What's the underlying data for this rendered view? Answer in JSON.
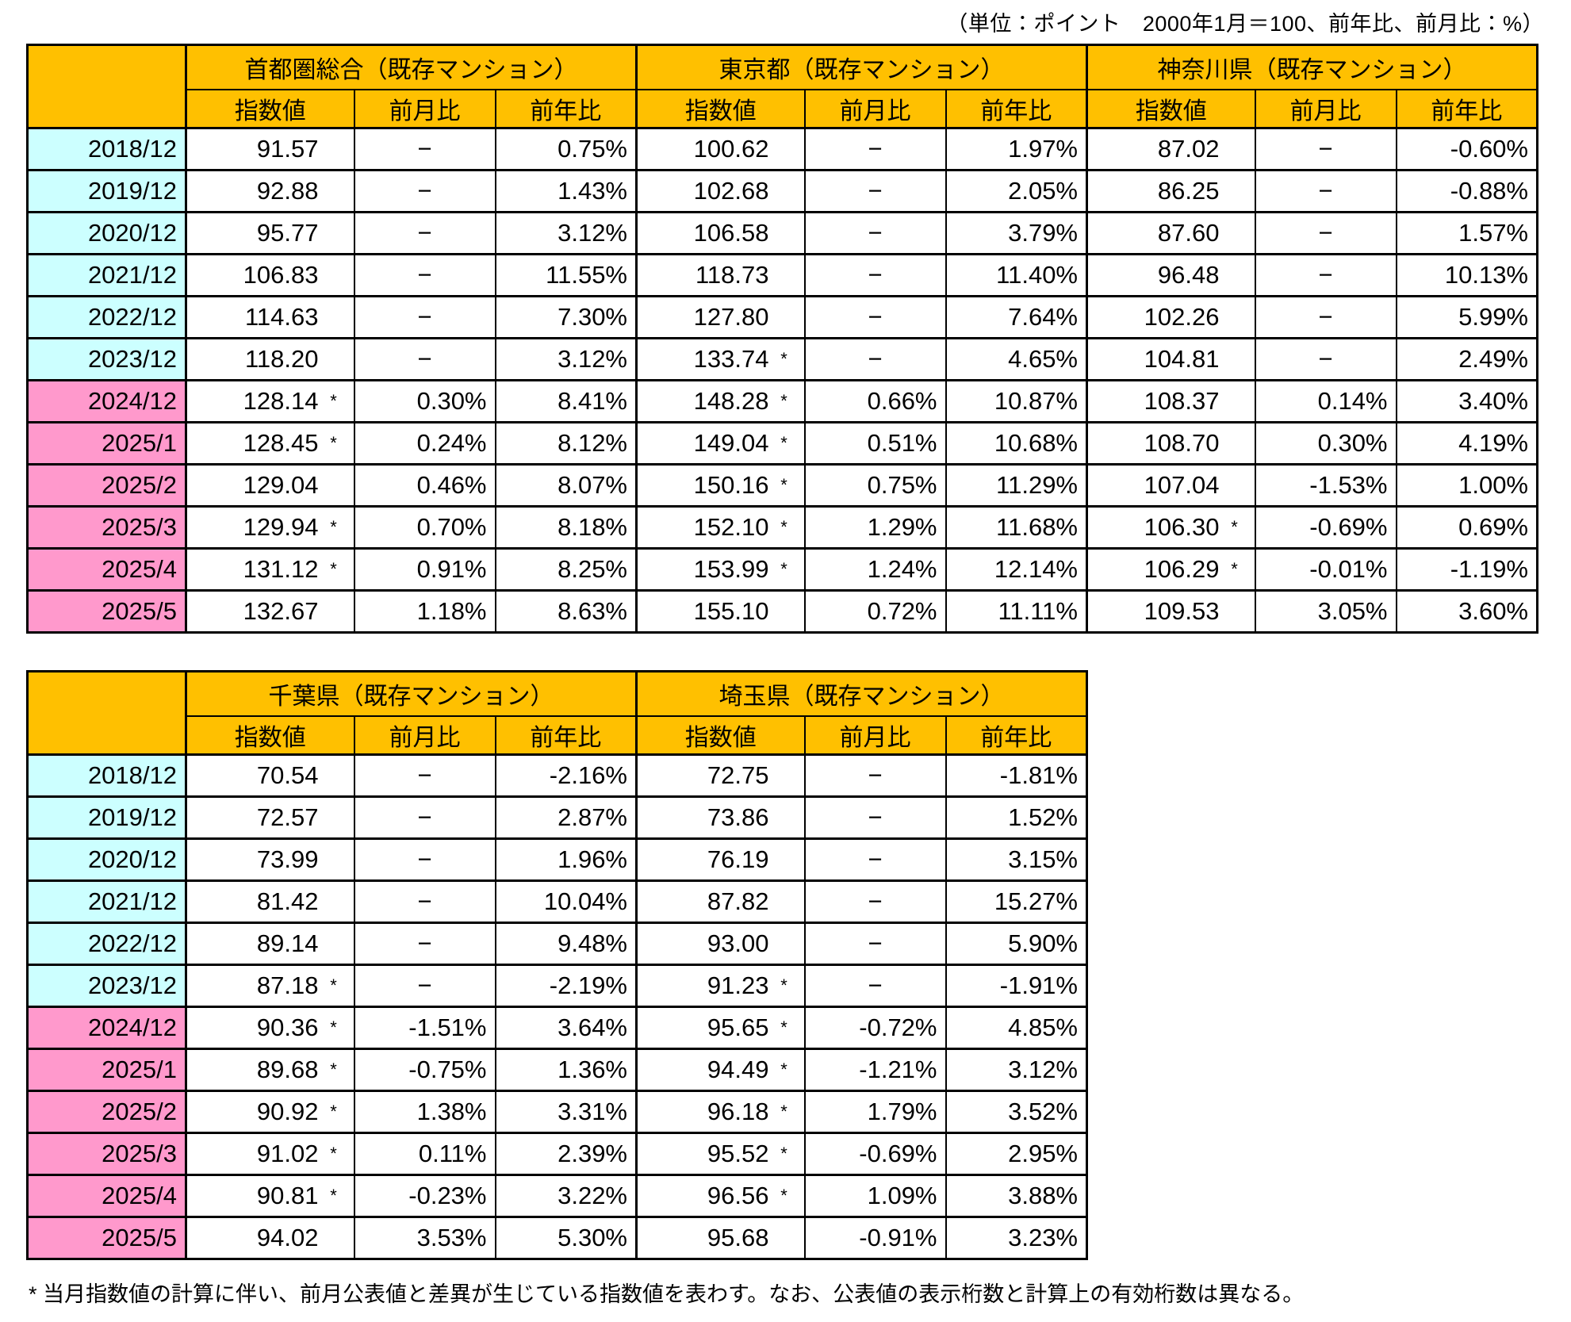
{
  "unit_note": "（単位：ポイント　2000年1月＝100、前年比、前月比：%）",
  "footnote": "* 当月指数値の計算に伴い、前月公表値と差異が生じている指数値を表わす。なお、公表値の表示桁数と計算上の有効桁数は異なる。",
  "colors": {
    "header_bg": "#FFC000",
    "old_row_bg": "#CCFFFF",
    "new_row_bg": "#FF99CC",
    "border": "#000000"
  },
  "sub_headers": [
    "指数値",
    "前月比",
    "前年比"
  ],
  "tables": [
    {
      "name": "index-table-1",
      "groups": [
        "首都圏総合（既存マンション）",
        "東京都（既存マンション）",
        "神奈川県（既存マンション）"
      ],
      "rows": [
        {
          "label": "2018/12",
          "tone": "old",
          "cells": [
            "91.57",
            "−",
            "0.75%",
            "100.62",
            "−",
            "1.97%",
            "87.02",
            "−",
            "-0.60%"
          ]
        },
        {
          "label": "2019/12",
          "tone": "old",
          "cells": [
            "92.88",
            "−",
            "1.43%",
            "102.68",
            "−",
            "2.05%",
            "86.25",
            "−",
            "-0.88%"
          ]
        },
        {
          "label": "2020/12",
          "tone": "old",
          "cells": [
            "95.77",
            "−",
            "3.12%",
            "106.58",
            "−",
            "3.79%",
            "87.60",
            "−",
            "1.57%"
          ]
        },
        {
          "label": "2021/12",
          "tone": "old",
          "cells": [
            "106.83",
            "−",
            "11.55%",
            "118.73",
            "−",
            "11.40%",
            "96.48",
            "−",
            "10.13%"
          ]
        },
        {
          "label": "2022/12",
          "tone": "old",
          "cells": [
            "114.63",
            "−",
            "7.30%",
            "127.80",
            "−",
            "7.64%",
            "102.26",
            "−",
            "5.99%"
          ]
        },
        {
          "label": "2023/12",
          "tone": "old",
          "cells": [
            "118.20",
            "−",
            "3.12%",
            "133.74*",
            "−",
            "4.65%",
            "104.81",
            "−",
            "2.49%"
          ]
        },
        {
          "label": "2024/12",
          "tone": "new",
          "cells": [
            "128.14*",
            "0.30%",
            "8.41%",
            "148.28*",
            "0.66%",
            "10.87%",
            "108.37",
            "0.14%",
            "3.40%"
          ]
        },
        {
          "label": "2025/1",
          "tone": "new",
          "cells": [
            "128.45*",
            "0.24%",
            "8.12%",
            "149.04*",
            "0.51%",
            "10.68%",
            "108.70",
            "0.30%",
            "4.19%"
          ]
        },
        {
          "label": "2025/2",
          "tone": "new",
          "cells": [
            "129.04",
            "0.46%",
            "8.07%",
            "150.16*",
            "0.75%",
            "11.29%",
            "107.04",
            "-1.53%",
            "1.00%"
          ]
        },
        {
          "label": "2025/3",
          "tone": "new",
          "cells": [
            "129.94*",
            "0.70%",
            "8.18%",
            "152.10*",
            "1.29%",
            "11.68%",
            "106.30*",
            "-0.69%",
            "0.69%"
          ]
        },
        {
          "label": "2025/4",
          "tone": "new",
          "cells": [
            "131.12*",
            "0.91%",
            "8.25%",
            "153.99*",
            "1.24%",
            "12.14%",
            "106.29*",
            "-0.01%",
            "-1.19%"
          ]
        },
        {
          "label": "2025/5",
          "tone": "new",
          "cells": [
            "132.67",
            "1.18%",
            "8.63%",
            "155.10",
            "0.72%",
            "11.11%",
            "109.53",
            "3.05%",
            "3.60%"
          ]
        }
      ]
    },
    {
      "name": "index-table-2",
      "groups": [
        "千葉県（既存マンション）",
        "埼玉県（既存マンション）"
      ],
      "rows": [
        {
          "label": "2018/12",
          "tone": "old",
          "cells": [
            "70.54",
            "−",
            "-2.16%",
            "72.75",
            "−",
            "-1.81%"
          ]
        },
        {
          "label": "2019/12",
          "tone": "old",
          "cells": [
            "72.57",
            "−",
            "2.87%",
            "73.86",
            "−",
            "1.52%"
          ]
        },
        {
          "label": "2020/12",
          "tone": "old",
          "cells": [
            "73.99",
            "−",
            "1.96%",
            "76.19",
            "−",
            "3.15%"
          ]
        },
        {
          "label": "2021/12",
          "tone": "old",
          "cells": [
            "81.42",
            "−",
            "10.04%",
            "87.82",
            "−",
            "15.27%"
          ]
        },
        {
          "label": "2022/12",
          "tone": "old",
          "cells": [
            "89.14",
            "−",
            "9.48%",
            "93.00",
            "−",
            "5.90%"
          ]
        },
        {
          "label": "2023/12",
          "tone": "old",
          "cells": [
            "87.18*",
            "−",
            "-2.19%",
            "91.23*",
            "−",
            "-1.91%"
          ]
        },
        {
          "label": "2024/12",
          "tone": "new",
          "cells": [
            "90.36*",
            "-1.51%",
            "3.64%",
            "95.65*",
            "-0.72%",
            "4.85%"
          ]
        },
        {
          "label": "2025/1",
          "tone": "new",
          "cells": [
            "89.68*",
            "-0.75%",
            "1.36%",
            "94.49*",
            "-1.21%",
            "3.12%"
          ]
        },
        {
          "label": "2025/2",
          "tone": "new",
          "cells": [
            "90.92*",
            "1.38%",
            "3.31%",
            "96.18*",
            "1.79%",
            "3.52%"
          ]
        },
        {
          "label": "2025/3",
          "tone": "new",
          "cells": [
            "91.02*",
            "0.11%",
            "2.39%",
            "95.52*",
            "-0.69%",
            "2.95%"
          ]
        },
        {
          "label": "2025/4",
          "tone": "new",
          "cells": [
            "90.81*",
            "-0.23%",
            "3.22%",
            "96.56*",
            "1.09%",
            "3.88%"
          ]
        },
        {
          "label": "2025/5",
          "tone": "new",
          "cells": [
            "94.02",
            "3.53%",
            "5.30%",
            "95.68",
            "-0.91%",
            "3.23%"
          ]
        }
      ]
    }
  ]
}
